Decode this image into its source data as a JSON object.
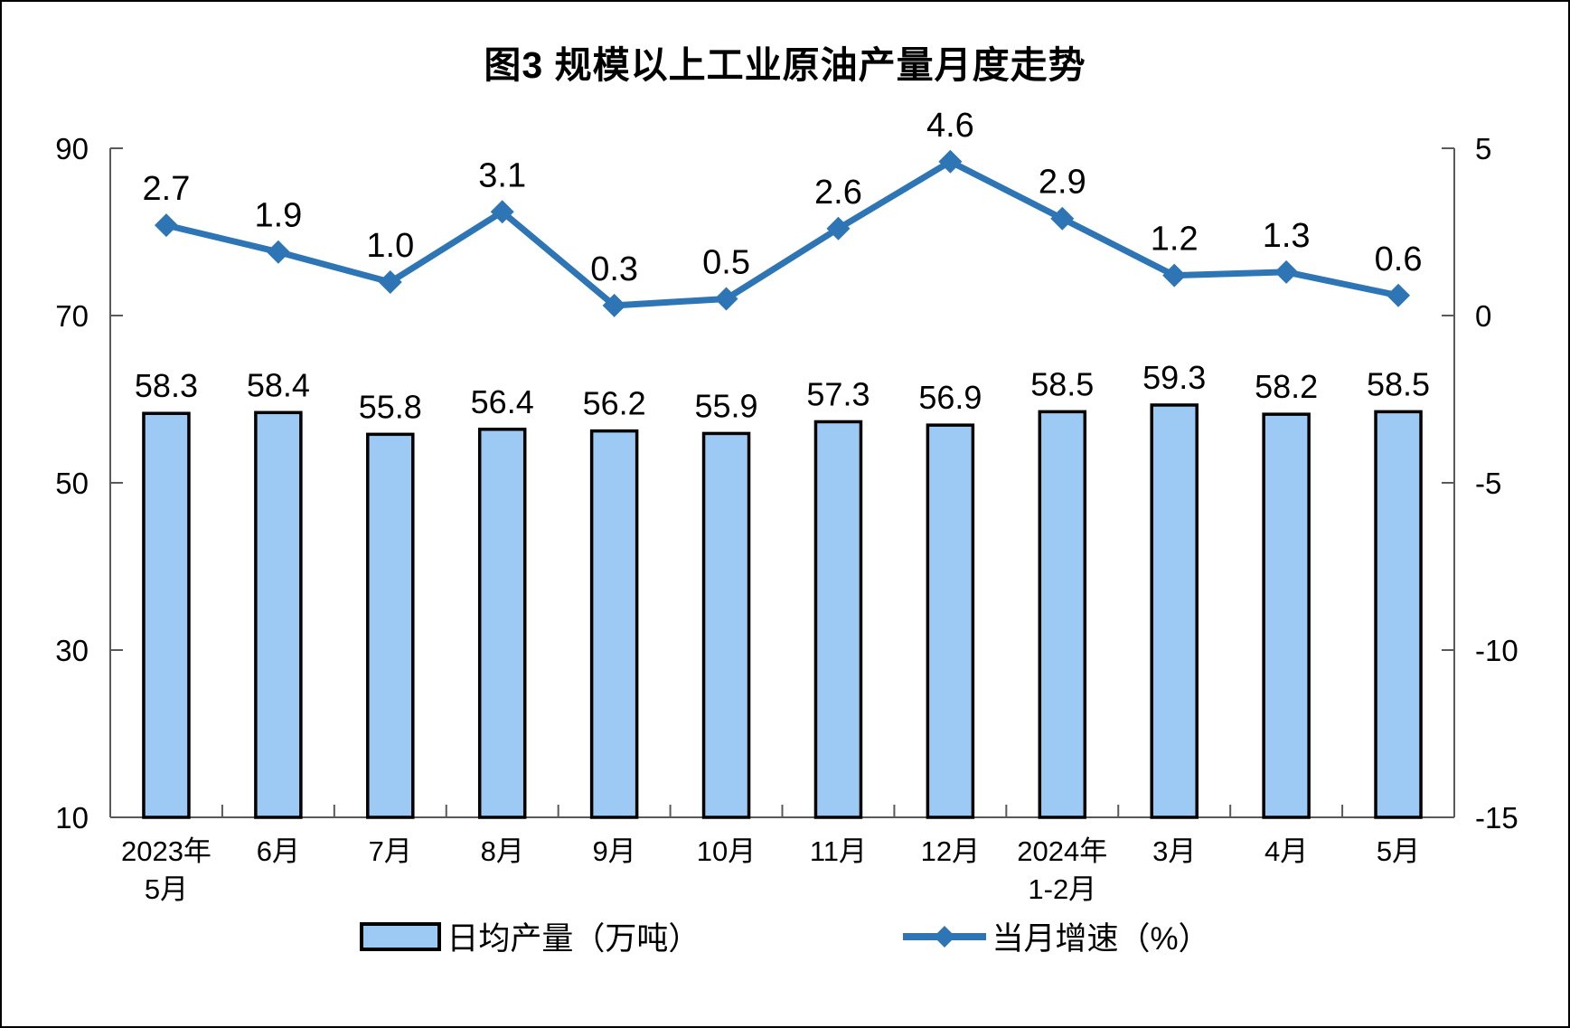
{
  "chart_data": {
    "type": "bar",
    "title": "图3 规模以上工业原油产量月度走势",
    "categories": [
      "2023年\n5月",
      "6月",
      "7月",
      "8月",
      "9月",
      "10月",
      "11月",
      "12月",
      "2024年\n1-2月",
      "3月",
      "4月",
      "5月"
    ],
    "series": [
      {
        "name": "日均产量（万吨）",
        "type": "bar",
        "axis": "left",
        "values": [
          58.3,
          58.4,
          55.8,
          56.4,
          56.2,
          55.9,
          57.3,
          56.9,
          58.5,
          59.3,
          58.2,
          58.5
        ],
        "fill": "#9DC9F5",
        "stroke": "#000000"
      },
      {
        "name": "当月增速（%）",
        "type": "line",
        "axis": "right",
        "values": [
          2.7,
          1.9,
          1.0,
          3.1,
          0.3,
          0.5,
          2.6,
          4.6,
          2.9,
          1.2,
          1.3,
          0.6
        ],
        "color": "#2E75B6",
        "marker": "diamond"
      }
    ],
    "left_axis": {
      "min": 10,
      "max": 90,
      "ticks": [
        10,
        30,
        50,
        70,
        90
      ]
    },
    "right_axis": {
      "min": -15,
      "max": 5,
      "ticks": [
        -15,
        -10,
        -5,
        0,
        5
      ]
    },
    "grid": "off",
    "legend_position": "bottom",
    "data_labels": "on"
  },
  "legend": {
    "bar_label": "日均产量（万吨）",
    "line_label": "当月增速（%）"
  },
  "colors": {
    "bar_fill": "#9DC9F5",
    "bar_stroke": "#000000",
    "line": "#2E75B6",
    "axis": "#595959",
    "text": "#000000"
  }
}
